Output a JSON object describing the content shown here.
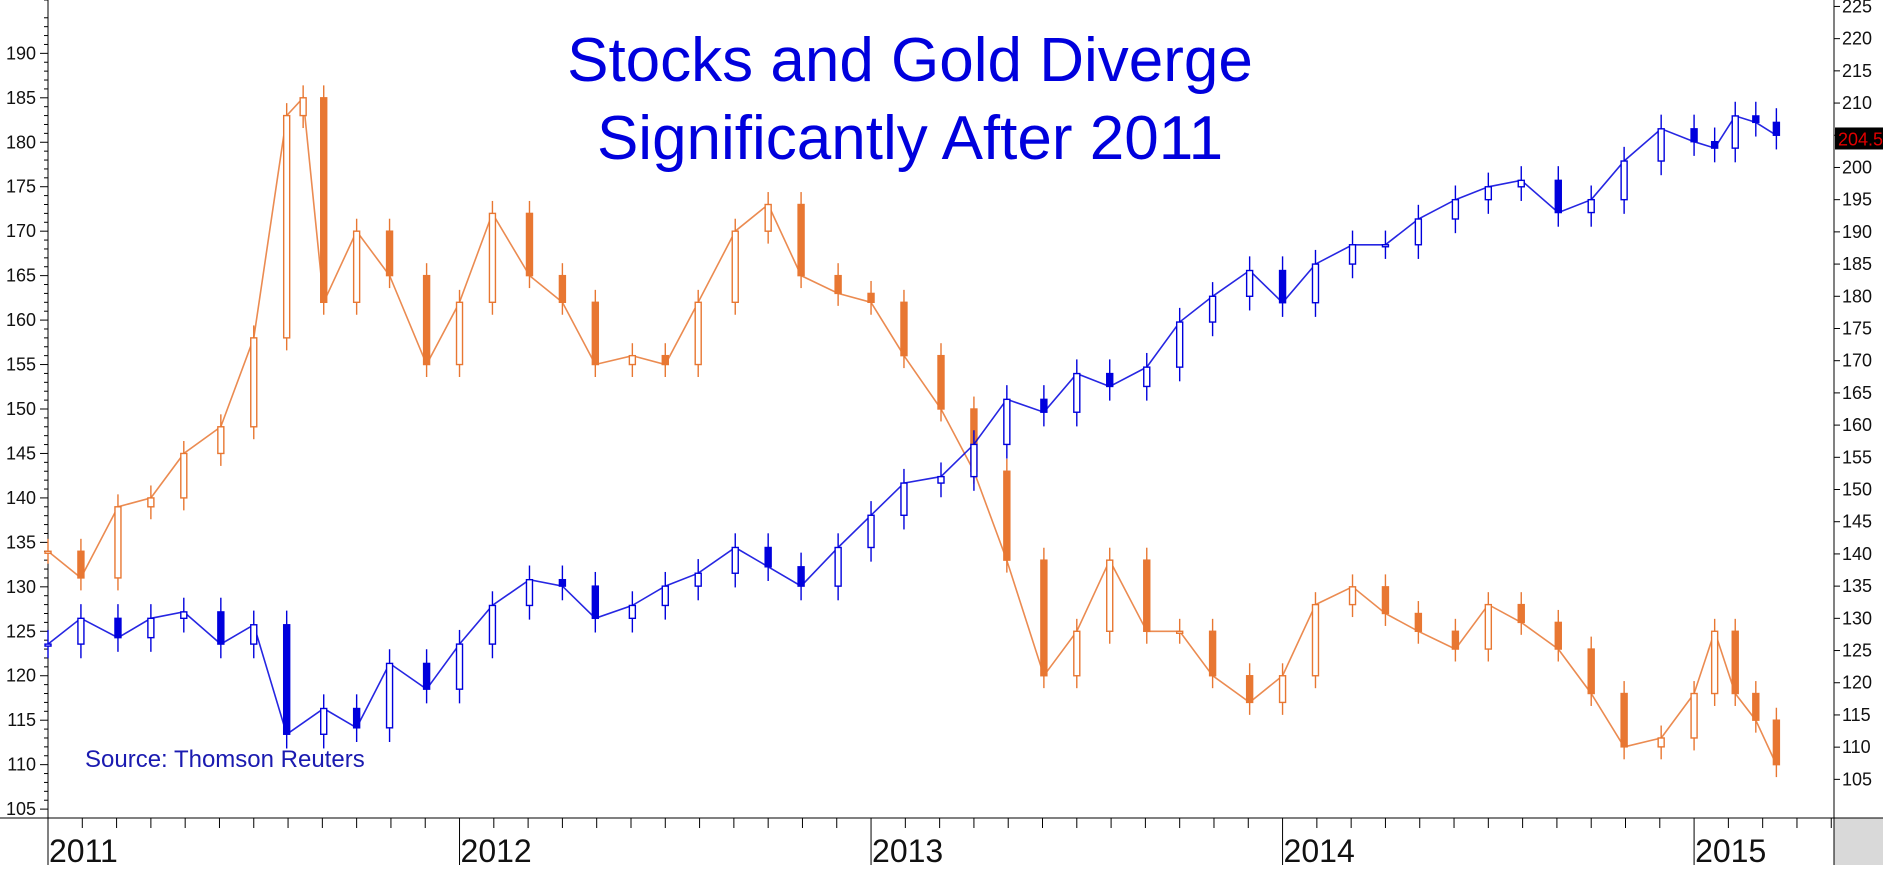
{
  "chart_data": {
    "type": "candlestick",
    "title_line1": "Stocks and Gold Diverge",
    "title_line2": "Significantly After 2011",
    "source": "Source: Thomson Reuters",
    "x_axis": {
      "labels": [
        "2011",
        "2012",
        "2013",
        "2014",
        "2015"
      ],
      "start": 2011.0,
      "end": 2015.34
    },
    "left_axis": {
      "range": [
        104,
        196
      ],
      "ticks": [
        105,
        110,
        115,
        120,
        125,
        130,
        135,
        140,
        145,
        150,
        155,
        160,
        165,
        170,
        175,
        180,
        185,
        190
      ]
    },
    "right_axis": {
      "range": [
        99,
        226
      ],
      "ticks": [
        105,
        110,
        115,
        120,
        125,
        130,
        135,
        140,
        145,
        150,
        155,
        160,
        165,
        170,
        175,
        180,
        185,
        190,
        195,
        200,
        205,
        210,
        215,
        220,
        225
      ],
      "last_price_label": "204.5"
    },
    "series": [
      {
        "axis": "left",
        "color": "#e87732",
        "points": [
          [
            2011.0,
            134
          ],
          [
            2011.08,
            131
          ],
          [
            2011.17,
            139
          ],
          [
            2011.25,
            140
          ],
          [
            2011.33,
            145
          ],
          [
            2011.42,
            148
          ],
          [
            2011.5,
            158
          ],
          [
            2011.58,
            183
          ],
          [
            2011.62,
            185
          ],
          [
            2011.67,
            162
          ],
          [
            2011.75,
            170
          ],
          [
            2011.83,
            165
          ],
          [
            2011.92,
            155
          ],
          [
            2012.0,
            162
          ],
          [
            2012.08,
            172
          ],
          [
            2012.17,
            165
          ],
          [
            2012.25,
            162
          ],
          [
            2012.33,
            155
          ],
          [
            2012.42,
            156
          ],
          [
            2012.5,
            155
          ],
          [
            2012.58,
            162
          ],
          [
            2012.67,
            170
          ],
          [
            2012.75,
            173
          ],
          [
            2012.83,
            165
          ],
          [
            2012.92,
            163
          ],
          [
            2013.0,
            162
          ],
          [
            2013.08,
            156
          ],
          [
            2013.17,
            150
          ],
          [
            2013.25,
            143
          ],
          [
            2013.33,
            133
          ],
          [
            2013.42,
            120
          ],
          [
            2013.5,
            125
          ],
          [
            2013.58,
            133
          ],
          [
            2013.67,
            125
          ],
          [
            2013.75,
            125
          ],
          [
            2013.83,
            120
          ],
          [
            2013.92,
            117
          ],
          [
            2014.0,
            120
          ],
          [
            2014.08,
            128
          ],
          [
            2014.17,
            130
          ],
          [
            2014.25,
            127
          ],
          [
            2014.33,
            125
          ],
          [
            2014.42,
            123
          ],
          [
            2014.5,
            128
          ],
          [
            2014.58,
            126
          ],
          [
            2014.67,
            123
          ],
          [
            2014.75,
            118
          ],
          [
            2014.83,
            112
          ],
          [
            2014.92,
            113
          ],
          [
            2015.0,
            118
          ],
          [
            2015.05,
            125
          ],
          [
            2015.1,
            118
          ],
          [
            2015.15,
            115
          ],
          [
            2015.2,
            110
          ]
        ]
      },
      {
        "axis": "right",
        "color": "#0000dd",
        "points": [
          [
            2011.0,
            126
          ],
          [
            2011.08,
            130
          ],
          [
            2011.17,
            127
          ],
          [
            2011.25,
            130
          ],
          [
            2011.33,
            131
          ],
          [
            2011.42,
            126
          ],
          [
            2011.5,
            129
          ],
          [
            2011.58,
            112
          ],
          [
            2011.67,
            116
          ],
          [
            2011.75,
            113
          ],
          [
            2011.83,
            123
          ],
          [
            2011.92,
            119
          ],
          [
            2012.0,
            126
          ],
          [
            2012.08,
            132
          ],
          [
            2012.17,
            136
          ],
          [
            2012.25,
            135
          ],
          [
            2012.33,
            130
          ],
          [
            2012.42,
            132
          ],
          [
            2012.5,
            135
          ],
          [
            2012.58,
            137
          ],
          [
            2012.67,
            141
          ],
          [
            2012.75,
            138
          ],
          [
            2012.83,
            135
          ],
          [
            2012.92,
            141
          ],
          [
            2013.0,
            146
          ],
          [
            2013.08,
            151
          ],
          [
            2013.17,
            152
          ],
          [
            2013.25,
            157
          ],
          [
            2013.33,
            164
          ],
          [
            2013.42,
            162
          ],
          [
            2013.5,
            168
          ],
          [
            2013.58,
            166
          ],
          [
            2013.67,
            169
          ],
          [
            2013.75,
            176
          ],
          [
            2013.83,
            180
          ],
          [
            2013.92,
            184
          ],
          [
            2014.0,
            179
          ],
          [
            2014.08,
            185
          ],
          [
            2014.17,
            188
          ],
          [
            2014.25,
            188
          ],
          [
            2014.33,
            192
          ],
          [
            2014.42,
            195
          ],
          [
            2014.5,
            197
          ],
          [
            2014.58,
            198
          ],
          [
            2014.67,
            193
          ],
          [
            2014.75,
            195
          ],
          [
            2014.83,
            201
          ],
          [
            2014.92,
            206
          ],
          [
            2015.0,
            204
          ],
          [
            2015.05,
            203
          ],
          [
            2015.1,
            208
          ],
          [
            2015.15,
            207
          ],
          [
            2015.2,
            205
          ]
        ]
      }
    ]
  }
}
